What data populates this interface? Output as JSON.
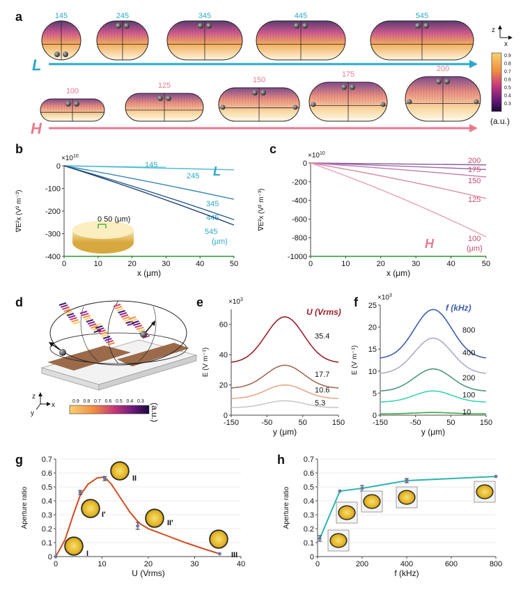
{
  "panel_letters": [
    "a",
    "b",
    "c",
    "d",
    "e",
    "f",
    "g",
    "h"
  ],
  "panel_a": {
    "row_L_label": "L",
    "row_L_values": [
      "145",
      "245",
      "345",
      "445",
      "545"
    ],
    "row_H_label": "H",
    "row_H_values": [
      "100",
      "125",
      "150",
      "175",
      "200"
    ],
    "axis_z": "z",
    "axis_x": "x",
    "colorbar_ticks": [
      "0.9",
      "0.8",
      "0.7",
      "0.6",
      "0.5",
      "0.4",
      "0.3"
    ],
    "colorbar_unit": "(a.u.)"
  },
  "panel_d": {
    "colorbar_ticks": [
      "0.9",
      "0.8",
      "0.7",
      "0.6",
      "0.5",
      "0.4",
      "0.3"
    ],
    "colorbar_unit": "(a.u.)",
    "axis_z": "z",
    "axis_x": "x",
    "axis_y": "y"
  },
  "colors": {
    "L": "#2aa8c8",
    "H": "#e87a8e",
    "panel_g_line": "#d44a1e",
    "panel_h_line": "#2bb5b0"
  },
  "chart_data": [
    {
      "id": "b",
      "type": "line",
      "exponent": "×10",
      "exponent_power": "10",
      "xlabel": "x (μm)",
      "ylabel": "∇E²x (V² m⁻³)",
      "xlim": [
        0,
        50
      ],
      "ylim": [
        -400,
        0
      ],
      "xticks": [
        0,
        10,
        20,
        30,
        40,
        50
      ],
      "yticks": [
        0,
        -100,
        -200,
        -300,
        -400
      ],
      "series_letter": "L",
      "inset_scale": "0  50 (μm)",
      "unit_note": "(μm)",
      "series": [
        {
          "name": "145",
          "color": "#7fd6e6",
          "x": [
            0,
            30
          ],
          "y": [
            0,
            -6
          ]
        },
        {
          "name": "245",
          "color": "#4bbad0",
          "x": [
            0,
            50
          ],
          "y": [
            0,
            -18
          ]
        },
        {
          "name": "345",
          "color": "#3a86b4",
          "x": [
            0,
            50
          ],
          "y": [
            0,
            -148
          ]
        },
        {
          "name": "445",
          "color": "#2b5e8e",
          "x": [
            0,
            50
          ],
          "y": [
            0,
            -238
          ]
        },
        {
          "name": "545",
          "color": "#1c3f6e",
          "x": [
            0,
            50
          ],
          "y": [
            0,
            -262
          ]
        }
      ]
    },
    {
      "id": "c",
      "type": "line",
      "exponent": "×10",
      "exponent_power": "10",
      "xlabel": "x (μm)",
      "ylabel": "∇E²x (V² m⁻³)",
      "xlim": [
        0,
        50
      ],
      "ylim": [
        -1000,
        0
      ],
      "xticks": [
        0,
        10,
        20,
        30,
        40,
        50
      ],
      "yticks": [
        0,
        -200,
        -400,
        -600,
        -800,
        -1000
      ],
      "series_letter": "H",
      "unit_note": "(μm)",
      "series": [
        {
          "name": "200",
          "color": "#7e5aa0",
          "x": [
            0,
            50
          ],
          "y": [
            0,
            -20
          ]
        },
        {
          "name": "175",
          "color": "#a06aa8",
          "x": [
            0,
            50
          ],
          "y": [
            0,
            -70
          ]
        },
        {
          "name": "150",
          "color": "#c07aae",
          "x": [
            0,
            50
          ],
          "y": [
            0,
            -150
          ]
        },
        {
          "name": "125",
          "color": "#d98aaa",
          "x": [
            0,
            50
          ],
          "y": [
            0,
            -380
          ]
        },
        {
          "name": "100",
          "color": "#e8a0b4",
          "x": [
            0,
            50
          ],
          "y": [
            0,
            -790
          ]
        }
      ]
    },
    {
      "id": "e",
      "type": "line",
      "exponent": "×10",
      "exponent_power": "3",
      "xlabel": "y (μm)",
      "ylabel": "E (V m⁻¹)",
      "xlim": [
        -150,
        150
      ],
      "ylim": [
        0,
        70
      ],
      "xticks": [
        -150,
        -50,
        50,
        150
      ],
      "yticks": [
        0,
        20,
        40,
        60
      ],
      "legend_title": "U (Vrms)",
      "series": [
        {
          "name": "35.4",
          "color": "#9b1e2a",
          "peak": 65,
          "edge": 35
        },
        {
          "name": "17.7",
          "color": "#a06a50",
          "peak": 33,
          "edge": 18
        },
        {
          "name": "10.6",
          "color": "#e8a888",
          "peak": 20,
          "edge": 11
        },
        {
          "name": "5.3",
          "color": "#c8c8c8",
          "peak": 9.5,
          "edge": 5
        }
      ]
    },
    {
      "id": "f",
      "type": "line",
      "exponent": "×10",
      "exponent_power": "3",
      "xlabel": "y (μm)",
      "ylabel": "E (V m⁻¹)",
      "xlim": [
        -150,
        150
      ],
      "ylim": [
        0,
        25
      ],
      "xticks": [
        -150,
        -50,
        50,
        150
      ],
      "yticks": [
        0,
        5,
        10,
        15,
        20,
        25
      ],
      "legend_title": "f (kHz)",
      "series": [
        {
          "name": "800",
          "color": "#3a5ea8",
          "peak": 24,
          "edge": 13
        },
        {
          "name": "400",
          "color": "#b0a8c8",
          "peak": 17.5,
          "edge": 9.5
        },
        {
          "name": "200",
          "color": "#4a9a78",
          "peak": 10.5,
          "edge": 5.5
        },
        {
          "name": "100",
          "color": "#3ad4b0",
          "peak": 5.5,
          "edge": 3
        },
        {
          "name": "10",
          "color": "#3aa840",
          "peak": 0.6,
          "edge": 0.3
        }
      ]
    },
    {
      "id": "g",
      "type": "scatter",
      "xlabel": "U (Vrms)",
      "ylabel": "Aperture ratio",
      "xlim": [
        0,
        40
      ],
      "ylim": [
        0,
        0.7
      ],
      "xticks": [
        0,
        10,
        20,
        30,
        40
      ],
      "yticks": [
        0,
        0.1,
        0.2,
        0.3,
        0.4,
        0.5,
        0.6,
        0.7
      ],
      "points": [
        {
          "x": 0,
          "y": 0,
          "err": 0
        },
        {
          "x": 5.3,
          "y": 0.46,
          "err": 0.015
        },
        {
          "x": 10.6,
          "y": 0.56,
          "err": 0.015
        },
        {
          "x": 17.7,
          "y": 0.22,
          "err": 0.025
        },
        {
          "x": 35.4,
          "y": 0.02,
          "err": 0
        }
      ],
      "curve": [
        [
          0,
          0
        ],
        [
          2,
          0.12
        ],
        [
          4,
          0.32
        ],
        [
          5.3,
          0.44
        ],
        [
          7,
          0.52
        ],
        [
          9,
          0.565
        ],
        [
          10.6,
          0.57
        ],
        [
          12,
          0.52
        ],
        [
          14,
          0.42
        ],
        [
          16,
          0.32
        ],
        [
          18,
          0.24
        ],
        [
          20,
          0.2
        ],
        [
          24,
          0.15
        ],
        [
          28,
          0.1
        ],
        [
          32,
          0.055
        ],
        [
          35.4,
          0.02
        ]
      ],
      "annotations": [
        "I",
        "I'",
        "II",
        "II'",
        "III"
      ]
    },
    {
      "id": "h",
      "type": "line",
      "xlabel": "f (kHz)",
      "ylabel": "Aperture ratio",
      "xlim": [
        0,
        800
      ],
      "ylim": [
        0,
        0.7
      ],
      "xticks": [
        0,
        200,
        400,
        600,
        800
      ],
      "yticks": [
        0,
        0.1,
        0.2,
        0.3,
        0.4,
        0.5,
        0.6,
        0.7
      ],
      "points": [
        {
          "x": 10,
          "y": 0.13,
          "err": 0.02
        },
        {
          "x": 100,
          "y": 0.47,
          "err": 0
        },
        {
          "x": 200,
          "y": 0.49,
          "err": 0.02
        },
        {
          "x": 400,
          "y": 0.545,
          "err": 0.015
        },
        {
          "x": 800,
          "y": 0.575,
          "err": 0
        }
      ]
    }
  ]
}
